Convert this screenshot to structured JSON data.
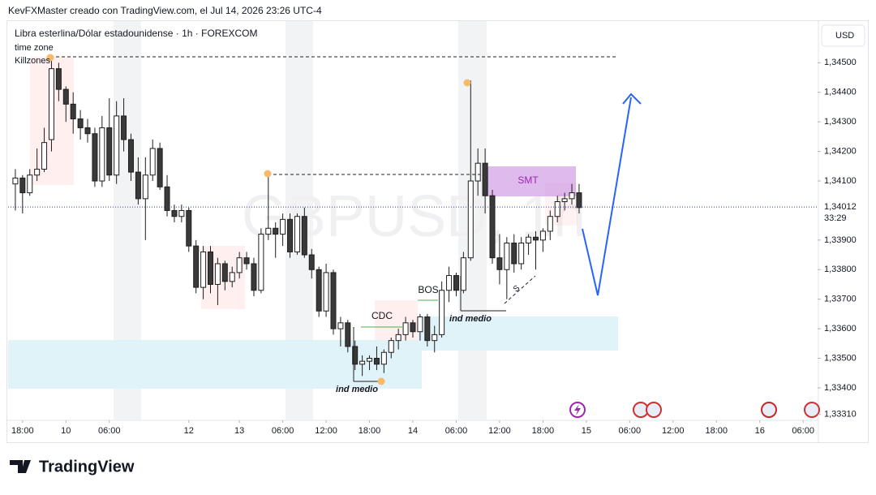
{
  "chart_data": {
    "type": "candlestick",
    "header": "KevFXMaster creado con TradingView.com, el Jul 14, 2026 23:26 UTC-4",
    "title": "Libra esterlina/Dólar estadounidense · 1h · FOREXCOM",
    "indicators": [
      "time zone",
      "Killzones"
    ],
    "currency": "USD",
    "watermark": "GBPUSD, 1h",
    "brand": "TradingView",
    "annotations": [
      "SMT",
      "CDC",
      "BOS",
      "ind medio",
      "ind medio",
      "S"
    ],
    "up_color": "#ffffff",
    "down_color": "#3a3a3a",
    "outline_color": "#1e1e1e",
    "grid": false,
    "candles": {
      "open": [
        1.3409,
        1.3411,
        1.3406,
        1.3412,
        1.3414,
        1.3424,
        1.3448,
        1.3441,
        1.3436,
        1.3431,
        1.3428,
        1.3426,
        1.341,
        1.3428,
        1.3412,
        1.3432,
        1.3424,
        1.3413,
        1.3404,
        1.3412,
        1.3421,
        1.3408,
        1.34,
        1.3398,
        1.34,
        1.3388,
        1.3374,
        1.3386,
        1.3375,
        1.3382,
        1.3376,
        1.3379,
        1.3384,
        1.3382,
        1.3373,
        1.3392,
        1.3394,
        1.3392,
        1.3397,
        1.3386,
        1.3398,
        1.3385,
        1.338,
        1.3366,
        1.3379,
        1.336,
        1.3362,
        1.3354,
        1.3348,
        1.3349,
        1.335,
        1.3348,
        1.3352,
        1.3356,
        1.3358,
        1.3362,
        1.3359,
        1.3364,
        1.3356,
        1.3358,
        1.3373,
        1.3378,
        1.3373,
        1.3384,
        1.341,
        1.3416,
        1.3405,
        1.3384,
        1.338,
        1.3389,
        1.3382,
        1.3389,
        1.3391,
        1.339,
        1.3393,
        1.3398,
        1.3403,
        1.3404,
        1.3406
      ],
      "high": [
        1.3414,
        1.3412,
        1.3414,
        1.3421,
        1.3428,
        1.3452,
        1.345,
        1.3442,
        1.344,
        1.3434,
        1.3431,
        1.3428,
        1.3432,
        1.3438,
        1.3437,
        1.3438,
        1.3426,
        1.3418,
        1.3418,
        1.3424,
        1.3423,
        1.3412,
        1.3402,
        1.3402,
        1.3401,
        1.339,
        1.3388,
        1.3388,
        1.3384,
        1.3383,
        1.3381,
        1.3386,
        1.3386,
        1.3384,
        1.3394,
        1.3413,
        1.3396,
        1.3399,
        1.3399,
        1.3399,
        1.3401,
        1.3387,
        1.3381,
        1.3382,
        1.338,
        1.3364,
        1.3363,
        1.3356,
        1.3351,
        1.3351,
        1.3354,
        1.3353,
        1.3357,
        1.336,
        1.3364,
        1.3363,
        1.3365,
        1.3365,
        1.3361,
        1.3376,
        1.3381,
        1.3379,
        1.3386,
        1.3444,
        1.3421,
        1.3421,
        1.3407,
        1.3392,
        1.3391,
        1.3392,
        1.3391,
        1.3392,
        1.3393,
        1.3394,
        1.34,
        1.3405,
        1.3406,
        1.3409,
        1.3409
      ],
      "low": [
        1.34,
        1.3399,
        1.3405,
        1.341,
        1.3413,
        1.342,
        1.3437,
        1.343,
        1.3426,
        1.3424,
        1.3423,
        1.3408,
        1.3408,
        1.341,
        1.3409,
        1.342,
        1.341,
        1.3402,
        1.339,
        1.341,
        1.3407,
        1.3398,
        1.3396,
        1.3396,
        1.3386,
        1.3372,
        1.337,
        1.3372,
        1.3368,
        1.3373,
        1.3374,
        1.3377,
        1.338,
        1.3371,
        1.3372,
        1.339,
        1.3384,
        1.3388,
        1.3384,
        1.3385,
        1.3384,
        1.3377,
        1.3364,
        1.3364,
        1.3358,
        1.3354,
        1.3352,
        1.3346,
        1.3344,
        1.3346,
        1.3346,
        1.3345,
        1.335,
        1.3353,
        1.3356,
        1.3357,
        1.3356,
        1.3354,
        1.3352,
        1.3357,
        1.3369,
        1.3371,
        1.3372,
        1.3383,
        1.3405,
        1.3399,
        1.3382,
        1.3375,
        1.337,
        1.3379,
        1.338,
        1.3385,
        1.338,
        1.3386,
        1.339,
        1.3396,
        1.34,
        1.3402,
        1.3399
      ],
      "close": [
        1.3411,
        1.3406,
        1.3412,
        1.3414,
        1.3423,
        1.3448,
        1.3441,
        1.3436,
        1.3431,
        1.3428,
        1.3426,
        1.341,
        1.3428,
        1.3412,
        1.3432,
        1.3424,
        1.3413,
        1.3404,
        1.3412,
        1.3421,
        1.3408,
        1.34,
        1.3398,
        1.34,
        1.3388,
        1.3374,
        1.3386,
        1.3375,
        1.3382,
        1.3376,
        1.3379,
        1.3384,
        1.3382,
        1.3373,
        1.3392,
        1.3394,
        1.3392,
        1.3397,
        1.3386,
        1.3398,
        1.3385,
        1.338,
        1.3366,
        1.3379,
        1.336,
        1.3362,
        1.3354,
        1.3348,
        1.3349,
        1.335,
        1.3348,
        1.3352,
        1.3356,
        1.3358,
        1.3362,
        1.3359,
        1.3364,
        1.3356,
        1.3358,
        1.3373,
        1.3378,
        1.3373,
        1.3384,
        1.341,
        1.3416,
        1.3405,
        1.3384,
        1.338,
        1.3389,
        1.3382,
        1.3389,
        1.3391,
        1.339,
        1.3393,
        1.3398,
        1.3403,
        1.3404,
        1.3406,
        1.3401
      ]
    },
    "last_price": {
      "value": 1.34012,
      "label": "1,34012"
    },
    "countdown": "33:29",
    "xlim": [
      0,
      112
    ],
    "xticks": [
      {
        "value": 2,
        "label": "18:00"
      },
      {
        "value": 8,
        "label": "10"
      },
      {
        "value": 14,
        "label": "06:00"
      },
      {
        "value": 25,
        "label": "12"
      },
      {
        "value": 32,
        "label": "13"
      },
      {
        "value": 38,
        "label": "06:00"
      },
      {
        "value": 44,
        "label": "12:00"
      },
      {
        "value": 50,
        "label": "18:00"
      },
      {
        "value": 56,
        "label": "14"
      },
      {
        "value": 62,
        "label": "06:00"
      },
      {
        "value": 68,
        "label": "12:00"
      },
      {
        "value": 74,
        "label": "18:00"
      },
      {
        "value": 80,
        "label": "15"
      },
      {
        "value": 86,
        "label": "06:00"
      },
      {
        "value": 92,
        "label": "12:00"
      },
      {
        "value": 98,
        "label": "18:00"
      },
      {
        "value": 104,
        "label": "16"
      },
      {
        "value": 110,
        "label": "06:00"
      }
    ],
    "ylim": [
      1.3329,
      1.3463
    ],
    "yticks": [
      {
        "value": 1.345,
        "label": "1,34500"
      },
      {
        "value": 1.344,
        "label": "1,34400"
      },
      {
        "value": 1.343,
        "label": "1,34300"
      },
      {
        "value": 1.342,
        "label": "1,34200"
      },
      {
        "value": 1.341,
        "label": "1,34100"
      },
      {
        "value": 1.339,
        "label": "1,33900"
      },
      {
        "value": 1.338,
        "label": "1,33800"
      },
      {
        "value": 1.337,
        "label": "1,33700"
      },
      {
        "value": 1.336,
        "label": "1,33600"
      },
      {
        "value": 1.335,
        "label": "1,33500"
      },
      {
        "value": 1.334,
        "label": "1,33400"
      },
      {
        "value": 1.3331,
        "label": "1,33310"
      }
    ]
  }
}
